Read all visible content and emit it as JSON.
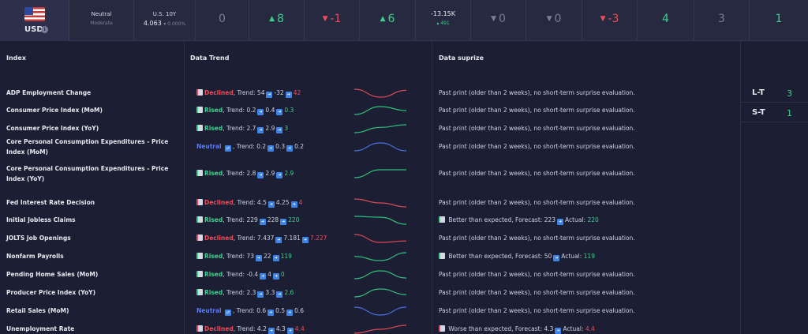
{
  "currency": {
    "label": "USD",
    "info_icon": "i",
    "flag": "us-flag-icon"
  },
  "sentiment": {
    "title": "Neutral",
    "subtitle": "Moderate"
  },
  "bond": {
    "title": "U.S. 10Y",
    "value": "4.063",
    "change": "▾ 0.000%"
  },
  "top_metrics": [
    {
      "value": "0",
      "arrow": "",
      "color": "gray"
    },
    {
      "value": "8",
      "arrow": "▲",
      "color": "green"
    },
    {
      "value": "-1",
      "arrow": "▼",
      "color": "red"
    },
    {
      "value": "6",
      "arrow": "▲",
      "color": "green"
    },
    {
      "value": "-13.15K",
      "change": "▴ 491",
      "color": "white"
    },
    {
      "value": "0",
      "arrow": "▼",
      "color": "gray"
    },
    {
      "value": "0",
      "arrow": "▼",
      "color": "gray"
    },
    {
      "value": "-3",
      "arrow": "▼",
      "color": "red"
    },
    {
      "value": "4",
      "arrow": "",
      "color": "green"
    },
    {
      "value": "3",
      "arrow": "",
      "color": "gray"
    },
    {
      "value": "1",
      "arrow": "",
      "color": "green"
    }
  ],
  "headers": {
    "index": "Index",
    "trend": "Data Trend",
    "surprise": "Data suprize"
  },
  "rows": [
    {
      "name": "ADP Employment Change",
      "status": "Declined",
      "trend": [
        54,
        -32,
        42
      ],
      "spark": "red",
      "surprise": "Past print (older than 2 weeks), no short-term surprise evaluation."
    },
    {
      "name": "Consumer Price Index (MoM)",
      "status": "Rised",
      "trend": [
        0.2,
        0.4,
        0.3
      ],
      "spark": "green",
      "surprise": "Past print (older than 2 weeks), no short-term surprise evaluation."
    },
    {
      "name": "Consumer Price Index (YoY)",
      "status": "Rised",
      "trend": [
        2.7,
        2.9,
        3
      ],
      "spark": "green",
      "surprise": "Past print (older than 2 weeks), no short-term surprise evaluation."
    },
    {
      "name": "Core Personal Consumption Expenditures - Price Index (MoM)",
      "status": "Neutral",
      "trend": [
        0.2,
        0.3,
        0.2
      ],
      "spark": "blue",
      "surprise": "Past print (older than 2 weeks), no short-term surprise evaluation."
    },
    {
      "name": "Core Personal Consumption Expenditures - Price Index (YoY)",
      "status": "Rised",
      "trend": [
        2.8,
        2.9,
        2.9
      ],
      "spark": "green",
      "surprise": "Past print (older than 2 weeks), no short-term surprise evaluation."
    },
    {
      "name": "Fed Interest Rate Decision",
      "status": "Declined",
      "trend": [
        4.5,
        4.25,
        4
      ],
      "spark": "red",
      "surprise": "Past print (older than 2 weeks), no short-term surprise evaluation."
    },
    {
      "name": "Initial Jobless Claims",
      "status": "Rised",
      "trend": [
        229,
        228,
        220
      ],
      "spark": "green",
      "surprise_type": "better",
      "surprise_label": "Better than expected, Forecast:",
      "forecast": "223",
      "actual": "220"
    },
    {
      "name": "JOLTS Job Openings",
      "status": "Declined",
      "trend": [
        7.437,
        7.181,
        7.227
      ],
      "spark": "red",
      "surprise": "Past print (older than 2 weeks), no short-term surprise evaluation."
    },
    {
      "name": "Nonfarm Payrolls",
      "status": "Rised",
      "trend": [
        73,
        22,
        119
      ],
      "spark": "green",
      "surprise_type": "better",
      "surprise_label": "Better than expected, Forecast:",
      "forecast": "50",
      "actual": "119"
    },
    {
      "name": "Pending Home Sales (MoM)",
      "status": "Rised",
      "trend": [
        -0.4,
        4,
        0
      ],
      "spark": "green",
      "surprise": "Past print (older than 2 weeks), no short-term surprise evaluation."
    },
    {
      "name": "Producer Price Index (YoY)",
      "status": "Rised",
      "trend": [
        2.3,
        3.3,
        2.6
      ],
      "spark": "green",
      "surprise": "Past print (older than 2 weeks), no short-term surprise evaluation."
    },
    {
      "name": "Retail Sales (MoM)",
      "status": "Neutral",
      "trend": [
        0.6,
        0.5,
        0.6
      ],
      "spark": "blue",
      "surprise": "Past print (older than 2 weeks), no short-term surprise evaluation."
    },
    {
      "name": "Unemployment Rate",
      "status": "Declined",
      "trend": [
        4.2,
        4.3,
        4.4
      ],
      "spark": "red",
      "surprise_type": "worse",
      "surprise_label": "Worse than expected, Forecast:",
      "forecast": "4.3",
      "actual": "4.4"
    }
  ],
  "labels": {
    "trend_prefix": ", Trend:",
    "actual": "Actual:"
  },
  "side": [
    {
      "label": "L-T",
      "value": "3"
    },
    {
      "label": "S-T",
      "value": "1"
    }
  ],
  "colors": {
    "green": "#3ecf8e",
    "red": "#ef4b5a",
    "blue": "#5e7cf2",
    "gray": "#7a7f99",
    "bg": "#1c1e33"
  }
}
